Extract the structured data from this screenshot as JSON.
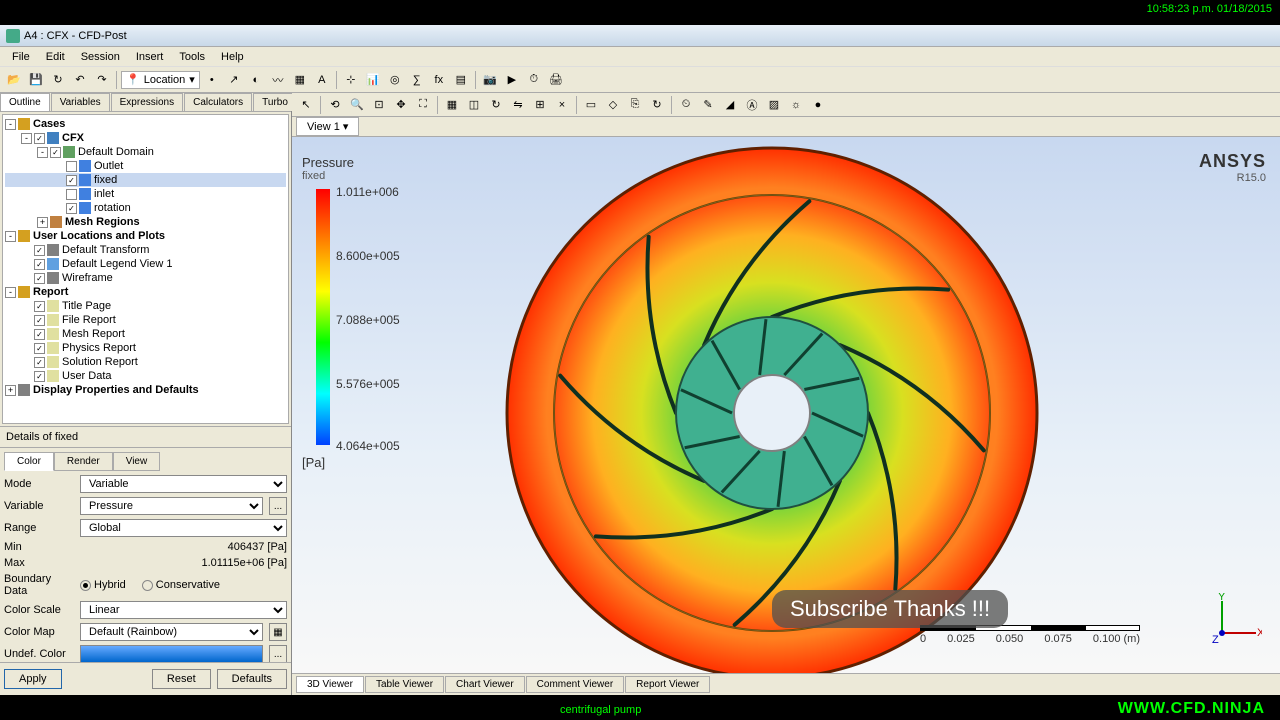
{
  "window": {
    "title": "A4 : CFX - CFD-Post"
  },
  "timestamp": "10:58:23 p.m. 01/18/2015",
  "footer": {
    "brand": "WWW.CFD.NINJA",
    "desc": "centrifugal pump"
  },
  "menu": [
    "File",
    "Edit",
    "Session",
    "Insert",
    "Tools",
    "Help"
  ],
  "location": "Location",
  "sidebar_tabs": [
    "Outline",
    "Variables",
    "Expressions",
    "Calculators",
    "Turbo"
  ],
  "tree": [
    {
      "d": 0,
      "t": "-",
      "label": "Cases",
      "bold": true,
      "icon": "#d4a020"
    },
    {
      "d": 1,
      "t": "-",
      "chk": "✓",
      "label": "CFX",
      "bold": true,
      "icon": "#4080c0"
    },
    {
      "d": 2,
      "t": "-",
      "chk": "✓",
      "label": "Default Domain",
      "icon": "#60a060"
    },
    {
      "d": 3,
      "chk": "",
      "label": "Outlet",
      "icon": "#4080e0"
    },
    {
      "d": 3,
      "chk": "✓",
      "label": "fixed",
      "icon": "#4080e0",
      "sel": true
    },
    {
      "d": 3,
      "chk": "",
      "label": "inlet",
      "icon": "#4080e0"
    },
    {
      "d": 3,
      "chk": "✓",
      "label": "rotation",
      "icon": "#4080e0"
    },
    {
      "d": 2,
      "t": "+",
      "label": "Mesh Regions",
      "bold": true,
      "icon": "#c08040"
    },
    {
      "d": 0,
      "t": "-",
      "label": "User Locations and Plots",
      "bold": true,
      "icon": "#d4a020"
    },
    {
      "d": 1,
      "chk": "✓",
      "label": "Default Transform",
      "icon": "#808080"
    },
    {
      "d": 1,
      "chk": "✓",
      "label": "Default Legend View 1",
      "icon": "#60a0e0"
    },
    {
      "d": 1,
      "chk": "✓",
      "label": "Wireframe",
      "icon": "#808080"
    },
    {
      "d": 0,
      "t": "-",
      "label": "Report",
      "bold": true,
      "icon": "#d4a020"
    },
    {
      "d": 1,
      "chk": "✓",
      "label": "Title Page",
      "icon": "#e0e0a0"
    },
    {
      "d": 1,
      "chk": "✓",
      "label": "File Report",
      "icon": "#e0e0a0"
    },
    {
      "d": 1,
      "chk": "✓",
      "label": "Mesh Report",
      "icon": "#e0e0a0"
    },
    {
      "d": 1,
      "chk": "✓",
      "label": "Physics Report",
      "icon": "#e0e0a0"
    },
    {
      "d": 1,
      "chk": "✓",
      "label": "Solution Report",
      "icon": "#e0e0a0"
    },
    {
      "d": 1,
      "chk": "✓",
      "label": "User Data",
      "icon": "#e0e0a0"
    },
    {
      "d": 0,
      "t": "+",
      "label": "Display Properties and Defaults",
      "bold": true,
      "icon": "#808080"
    }
  ],
  "details": {
    "header": "Details of fixed",
    "tabs": [
      "Color",
      "Render",
      "View"
    ],
    "mode_label": "Mode",
    "mode": "Variable",
    "variable_label": "Variable",
    "variable": "Pressure",
    "range_label": "Range",
    "range": "Global",
    "min_label": "Min",
    "min": "406437 [Pa]",
    "max_label": "Max",
    "max": "1.01115e+06 [Pa]",
    "boundary_label": "Boundary Data",
    "hybrid": "Hybrid",
    "conservative": "Conservative",
    "colorscale_label": "Color Scale",
    "colorscale": "Linear",
    "colormap_label": "Color Map",
    "colormap": "Default (Rainbow)",
    "undef_label": "Undef. Color",
    "apply": "Apply",
    "reset": "Reset",
    "defaults": "Defaults"
  },
  "view": {
    "tab": "View 1 ▾"
  },
  "legend": {
    "title": "Pressure",
    "sub": "fixed",
    "unit": "[Pa]",
    "ticks": [
      "1.011e+006",
      "8.600e+005",
      "7.088e+005",
      "5.576e+005",
      "4.064e+005"
    ],
    "tick_positions": [
      48,
      112,
      176,
      240,
      302
    ]
  },
  "brand": {
    "name": "ANSYS",
    "ver": "R15.0"
  },
  "scale": {
    "labels": [
      "0",
      "0.025",
      "0.050",
      "0.075",
      "0.100 (m)"
    ]
  },
  "bottom_tabs": [
    "3D Viewer",
    "Table Viewer",
    "Chart Viewer",
    "Comment Viewer",
    "Report Viewer"
  ],
  "overlay": "Subscribe Thanks !!!",
  "impeller": {
    "colors": {
      "rim": "#ff6010",
      "outer": "#d8e020",
      "mid": "#60d040",
      "inner": "#20c0a0",
      "hub": "#3080e0",
      "blade": "#103020"
    }
  }
}
